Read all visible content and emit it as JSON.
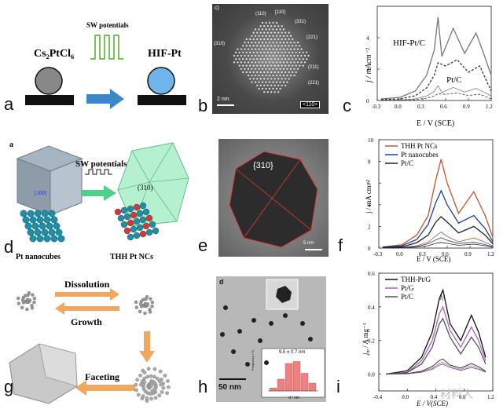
{
  "panel_letters": [
    "a",
    "b",
    "c",
    "d",
    "e",
    "f",
    "g",
    "h",
    "i"
  ],
  "a": {
    "precursor": "Cs₂PtCl₆",
    "potential": "SW potentials",
    "product": "HIF-Pt"
  },
  "b": {
    "corner": "c)",
    "facets": [
      "(110)",
      "[110]",
      "(331)",
      "(221)",
      "(310)",
      "(211)",
      "(221)"
    ],
    "scale": "2 nm",
    "zone": "<110>"
  },
  "c": {
    "ylabel": "j / mAcm⁻²",
    "xlabel": "E / V (SCE)",
    "xticks": [
      "-0.3",
      "0.0",
      "0.3",
      "0.6",
      "0.9",
      "1.2"
    ],
    "yticks": [
      "0",
      "2",
      "4"
    ],
    "label1": "HIF-Pt/C",
    "label2": "Pt/C"
  },
  "d": {
    "corner": "a",
    "potential": "SW potentials",
    "facet100": "[100]",
    "facet310": "(310)",
    "left": "Pt nanocubes",
    "right": "THH Pt NCs"
  },
  "e": {
    "facet": "{310}",
    "scale": "5 nm"
  },
  "f": {
    "ylabel": "j / mA cm⁻²",
    "xlabel": "E / V (SCE)",
    "xticks": [
      "-0.3",
      "0.0",
      "0.3",
      "0.6",
      "0.9",
      "1.2"
    ],
    "yticks": [
      "0",
      "2",
      "4",
      "6",
      "8",
      "10"
    ],
    "legend": [
      "THH Pt NCs",
      "Pt nanocubes",
      "Pt/C"
    ],
    "colors": [
      "#c0552f",
      "#1f3fa0",
      "#222222"
    ]
  },
  "g": {
    "dissolution": "Dissolution",
    "growth": "Growth",
    "faceting": "Faceting"
  },
  "h": {
    "corner": "d",
    "scale": "50 nm",
    "annot": "9.5 ± 0.7 nm",
    "xlabel": "d / nm",
    "ylabel": "Frequency / %",
    "xticks": [
      "6",
      "8",
      "10",
      "12"
    ]
  },
  "i": {
    "ylabel": "j",
    "ylabel_sub": "m",
    "ylabel_unit": " / A mg⁻¹",
    "xlabel": "E / V(SCE)",
    "xticks": [
      "-0.4",
      "0.0",
      "0.4",
      "0.8",
      "1.2"
    ],
    "yticks": [
      "0.0",
      "0.2",
      "0.4",
      "0.6"
    ],
    "legend": [
      "THH-Pt/G",
      "Pt/G",
      "Pt/C"
    ],
    "colors": [
      "#111111",
      "#b060c0",
      "#555555"
    ],
    "peak": "j",
    "peak_sub": "f"
  },
  "watermark": "材料人",
  "chart_data": [
    {
      "type": "line",
      "panel": "c",
      "xlabel": "E / V (SCE)",
      "ylabel": "j / mAcm⁻²",
      "xlim": [
        -0.3,
        1.2
      ],
      "ylim": [
        0,
        6
      ],
      "series": [
        {
          "name": "HIF-Pt/C",
          "x": [
            -0.25,
            0.0,
            0.2,
            0.35,
            0.45,
            0.5,
            0.55,
            0.7,
            0.85,
            1.0,
            1.1,
            1.2
          ],
          "y": [
            0.1,
            0.2,
            0.6,
            1.6,
            3.2,
            5.3,
            2.8,
            4.6,
            3.0,
            4.3,
            3.0,
            1.6
          ]
        },
        {
          "name": "Pt/C",
          "x": [
            -0.25,
            0.0,
            0.2,
            0.35,
            0.45,
            0.5,
            0.6,
            0.75,
            0.9,
            1.05,
            1.2
          ],
          "y": [
            0.05,
            0.1,
            0.3,
            0.8,
            1.6,
            2.4,
            2.2,
            2.6,
            1.8,
            2.2,
            0.6
          ]
        }
      ]
    },
    {
      "type": "line",
      "panel": "f",
      "xlabel": "E / V (SCE)",
      "ylabel": "j / mA cm⁻²",
      "xlim": [
        -0.3,
        1.2
      ],
      "ylim": [
        0,
        10
      ],
      "series": [
        {
          "name": "THH Pt NCs",
          "x": [
            -0.25,
            0.0,
            0.2,
            0.35,
            0.45,
            0.52,
            0.6,
            0.75,
            0.95,
            1.1,
            1.2
          ],
          "y": [
            0.1,
            0.3,
            1.2,
            3.0,
            6.3,
            8.2,
            6.0,
            3.2,
            5.2,
            3.0,
            1.0
          ]
        },
        {
          "name": "Pt nanocubes",
          "x": [
            -0.25,
            0.0,
            0.2,
            0.35,
            0.45,
            0.52,
            0.6,
            0.75,
            0.95,
            1.1,
            1.2
          ],
          "y": [
            0.1,
            0.2,
            0.8,
            2.2,
            4.2,
            5.3,
            4.0,
            2.3,
            3.0,
            1.8,
            0.6
          ]
        },
        {
          "name": "Pt/C",
          "x": [
            -0.25,
            0.0,
            0.2,
            0.35,
            0.45,
            0.52,
            0.6,
            0.75,
            0.95,
            1.1,
            1.2
          ],
          "y": [
            0.05,
            0.1,
            0.5,
            1.2,
            2.4,
            2.9,
            2.4,
            1.4,
            2.0,
            1.2,
            0.4
          ]
        }
      ]
    },
    {
      "type": "line",
      "panel": "i",
      "xlabel": "E / V(SCE)",
      "ylabel": "jm / A mg⁻¹",
      "xlim": [
        -0.4,
        1.2
      ],
      "ylim": [
        -0.1,
        0.6
      ],
      "series": [
        {
          "name": "THH-Pt/G",
          "x": [
            -0.3,
            0.0,
            0.2,
            0.35,
            0.45,
            0.5,
            0.6,
            0.75,
            0.9,
            1.0,
            1.1
          ],
          "y": [
            0.0,
            0.02,
            0.1,
            0.25,
            0.45,
            0.5,
            0.3,
            0.2,
            0.35,
            0.25,
            0.1
          ]
        },
        {
          "name": "Pt/G",
          "x": [
            -0.3,
            0.0,
            0.2,
            0.35,
            0.45,
            0.5,
            0.6,
            0.75,
            0.9,
            1.0,
            1.1
          ],
          "y": [
            0.0,
            0.01,
            0.08,
            0.2,
            0.36,
            0.4,
            0.26,
            0.16,
            0.28,
            0.2,
            0.08
          ]
        },
        {
          "name": "Pt/C",
          "x": [
            -0.3,
            0.0,
            0.2,
            0.35,
            0.45,
            0.5,
            0.6,
            0.75,
            0.9,
            1.0,
            1.1
          ],
          "y": [
            0.0,
            0.01,
            0.06,
            0.16,
            0.3,
            0.33,
            0.22,
            0.12,
            0.22,
            0.16,
            0.06
          ]
        }
      ]
    },
    {
      "type": "bar",
      "panel": "h-inset",
      "xlabel": "d / nm",
      "ylabel": "Frequency / %",
      "categories": [
        "7",
        "8",
        "9",
        "10",
        "11",
        "12"
      ],
      "values": [
        3,
        12,
        28,
        30,
        18,
        8
      ]
    }
  ]
}
